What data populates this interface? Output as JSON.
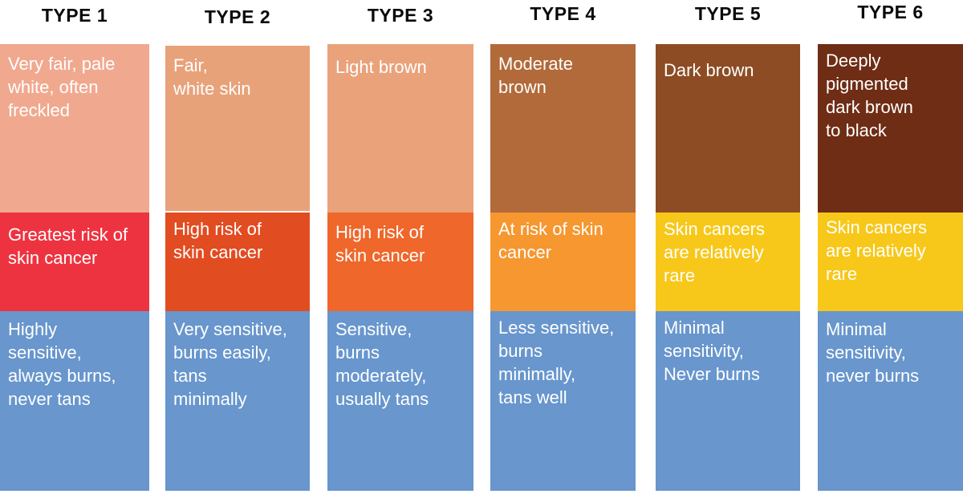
{
  "types": [
    {
      "label": "TYPE 1",
      "skin": "Very fair, pale\nwhite, often\nfreckled",
      "risk": "Greatest risk of\nskin cancer",
      "sensitivity": "Highly\nsensitive,\nalways burns,\nnever tans",
      "colors": {
        "skin": "#f0a98f",
        "risk": "#ee3340",
        "sensitivity": "#6896cd"
      }
    },
    {
      "label": "TYPE 2",
      "skin": "Fair,\nwhite skin",
      "risk": "High risk of\nskin cancer",
      "sensitivity": "Very sensitive,\nburns easily,\ntans\nminimally",
      "colors": {
        "skin": "#e8a27a",
        "risk": "#e24c21",
        "sensitivity": "#6896cd"
      }
    },
    {
      "label": "TYPE 3",
      "skin": "Light brown",
      "risk": "High risk of\nskin cancer",
      "sensitivity": "Sensitive,\nburns\nmoderately,\nusually tans",
      "colors": {
        "skin": "#e9a27a",
        "risk": "#ef672a",
        "sensitivity": "#6896cd"
      }
    },
    {
      "label": "TYPE 4",
      "skin": "Moderate\nbrown",
      "risk": "At risk of skin\ncancer",
      "sensitivity": "Less sensitive,\nburns\nminimally,\ntans well",
      "colors": {
        "skin": "#b26a3a",
        "risk": "#f6972f",
        "sensitivity": "#6896cd"
      }
    },
    {
      "label": "TYPE 5",
      "skin": "Dark brown",
      "risk": "Skin cancers\nare relatively\nrare",
      "sensitivity": "Minimal\nsensitivity,\nNever burns",
      "colors": {
        "skin": "#8d4c24",
        "risk": "#f7c81a",
        "sensitivity": "#6896cd"
      }
    },
    {
      "label": "TYPE 6",
      "skin": "Deeply\npigmented\ndark brown\nto black",
      "risk": "Skin cancers\nare relatively\nrare",
      "sensitivity": "Minimal\nsensitivity,\nnever burns",
      "colors": {
        "skin": "#6e2d14",
        "risk": "#f7c81a",
        "sensitivity": "#6896cd"
      }
    }
  ]
}
